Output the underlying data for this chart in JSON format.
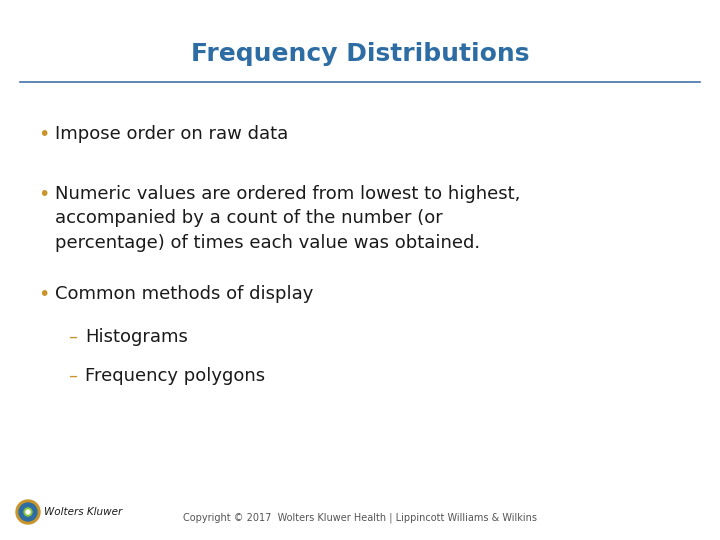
{
  "title": "Frequency Distributions",
  "title_color": "#2E6DA4",
  "title_fontsize": 18,
  "title_bold": true,
  "line_color": "#4472a8",
  "background_color": "#ffffff",
  "bullet_color": "#C8952A",
  "bullet_char": "•",
  "dash_char": "–",
  "body_color": "#1a1a1a",
  "body_fontsize": 13,
  "sub_fontsize": 13,
  "bullets": [
    {
      "type": "bullet",
      "text": "Impose order on raw data"
    },
    {
      "type": "bullet",
      "text": "Numeric values are ordered from lowest to highest,\naccompanied by a count of the number (or\npercentage) of times each value was obtained."
    },
    {
      "type": "bullet",
      "text": "Common methods of display"
    },
    {
      "type": "sub",
      "text": "Histograms"
    },
    {
      "type": "sub",
      "text": "Frequency polygons"
    }
  ],
  "footer_text": "Copyright © 2017  Wolters Kluwer Health | Lippincott Williams & Wilkins",
  "footer_fontsize": 7,
  "footer_color": "#555555",
  "logo_text": ". Wolters Kluwer",
  "logo_fontsize": 7.5
}
